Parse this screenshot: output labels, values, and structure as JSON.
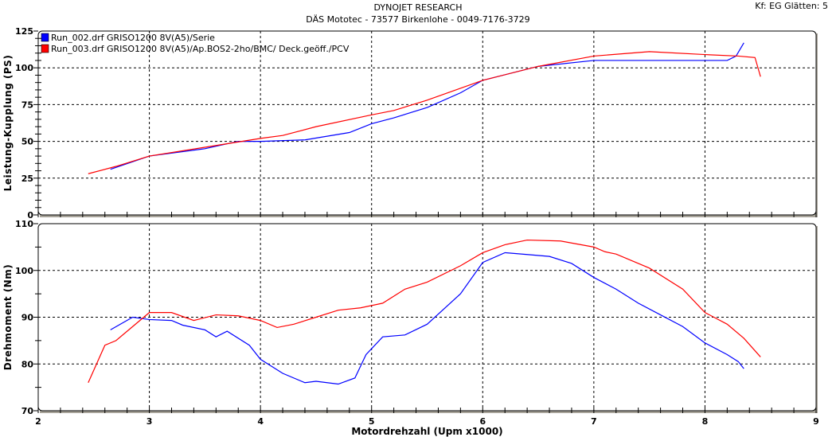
{
  "header": {
    "title": "DYNOJET RESEARCH",
    "subtitle": "DÄS Mototec - 73577 Birkenlohe  - 0049-7176-3729",
    "corner": "Kf: EG  Glätten: 5"
  },
  "colors": {
    "run1": "#0000ff",
    "run2": "#ff0000",
    "shadow": "#a8a49a"
  },
  "chart_data": [
    {
      "type": "line",
      "ylabel": "Leistung-Kupplung (PS)",
      "xlabel": "Motordrehzahl (Upm x1000)",
      "xlim": [
        2,
        9
      ],
      "ylim": [
        0,
        125
      ],
      "xticks": [
        2,
        3,
        4,
        5,
        6,
        7,
        8,
        9
      ],
      "yticks": [
        0,
        25,
        50,
        75,
        100,
        125
      ],
      "grid": true,
      "legend": "top-left",
      "series": [
        {
          "name": "Run_002.drf GRISO1200 8V(A5)/Serie",
          "color": "#0000ff",
          "points": [
            [
              2.65,
              31
            ],
            [
              3.0,
              40
            ],
            [
              3.5,
              45
            ],
            [
              3.8,
              50
            ],
            [
              4.0,
              50
            ],
            [
              4.4,
              51
            ],
            [
              4.8,
              56
            ],
            [
              5.0,
              62
            ],
            [
              5.2,
              66
            ],
            [
              5.5,
              73
            ],
            [
              5.8,
              83
            ],
            [
              6.0,
              91.5
            ],
            [
              6.5,
              101
            ],
            [
              7.0,
              105
            ],
            [
              7.5,
              105
            ],
            [
              8.0,
              105
            ],
            [
              8.2,
              105
            ],
            [
              8.28,
              108
            ],
            [
              8.35,
              117
            ]
          ]
        },
        {
          "name": "Run_003.drf GRISO1200 8V(A5)/Ap.BOS2-2ho/BMC/ Deck.geöff./PCV",
          "color": "#ff0000",
          "points": [
            [
              2.45,
              28
            ],
            [
              2.7,
              33
            ],
            [
              3.0,
              40
            ],
            [
              3.5,
              46
            ],
            [
              4.0,
              52
            ],
            [
              4.2,
              54
            ],
            [
              4.5,
              60
            ],
            [
              5.0,
              68
            ],
            [
              5.2,
              71
            ],
            [
              5.5,
              78
            ],
            [
              6.0,
              91.5
            ],
            [
              6.5,
              101
            ],
            [
              7.0,
              108
            ],
            [
              7.5,
              111
            ],
            [
              8.0,
              109
            ],
            [
              8.3,
              108
            ],
            [
              8.45,
              107
            ],
            [
              8.5,
              94
            ]
          ]
        }
      ]
    },
    {
      "type": "line",
      "ylabel": "Drehmoment (Nm)",
      "xlabel": "Motordrehzahl (Upm x1000)",
      "xlim": [
        2,
        9
      ],
      "ylim": [
        70,
        110
      ],
      "xticks": [
        2,
        3,
        4,
        5,
        6,
        7,
        8,
        9
      ],
      "yticks": [
        70,
        80,
        90,
        100,
        110
      ],
      "grid": true,
      "series": [
        {
          "name": "Run_002",
          "color": "#0000ff",
          "points": [
            [
              2.65,
              87.3
            ],
            [
              2.85,
              90
            ],
            [
              3.0,
              89.5
            ],
            [
              3.2,
              89.3
            ],
            [
              3.3,
              88.3
            ],
            [
              3.5,
              87.3
            ],
            [
              3.6,
              85.8
            ],
            [
              3.7,
              87
            ],
            [
              3.9,
              84
            ],
            [
              4.0,
              81
            ],
            [
              4.2,
              78
            ],
            [
              4.4,
              76
            ],
            [
              4.5,
              76.3
            ],
            [
              4.7,
              75.7
            ],
            [
              4.85,
              77
            ],
            [
              4.95,
              82
            ],
            [
              5.1,
              85.8
            ],
            [
              5.3,
              86.2
            ],
            [
              5.5,
              88.5
            ],
            [
              5.8,
              95
            ],
            [
              6.0,
              101.7
            ],
            [
              6.2,
              103.8
            ],
            [
              6.4,
              103.4
            ],
            [
              6.6,
              103
            ],
            [
              6.8,
              101.5
            ],
            [
              7.0,
              98.5
            ],
            [
              7.2,
              96
            ],
            [
              7.4,
              93
            ],
            [
              7.6,
              90.5
            ],
            [
              7.8,
              88
            ],
            [
              8.0,
              84.5
            ],
            [
              8.2,
              82
            ],
            [
              8.3,
              80.5
            ],
            [
              8.35,
              79
            ]
          ]
        },
        {
          "name": "Run_003",
          "color": "#ff0000",
          "points": [
            [
              2.45,
              76
            ],
            [
              2.6,
              84
            ],
            [
              2.7,
              85
            ],
            [
              2.85,
              88
            ],
            [
              3.0,
              91
            ],
            [
              3.2,
              91
            ],
            [
              3.4,
              89.3
            ],
            [
              3.6,
              90.5
            ],
            [
              3.8,
              90.3
            ],
            [
              4.0,
              89.3
            ],
            [
              4.15,
              87.8
            ],
            [
              4.3,
              88.5
            ],
            [
              4.5,
              90
            ],
            [
              4.7,
              91.5
            ],
            [
              4.9,
              92
            ],
            [
              5.1,
              93
            ],
            [
              5.3,
              96
            ],
            [
              5.5,
              97.5
            ],
            [
              5.8,
              101
            ],
            [
              6.0,
              103.8
            ],
            [
              6.2,
              105.5
            ],
            [
              6.4,
              106.5
            ],
            [
              6.7,
              106.3
            ],
            [
              7.0,
              105
            ],
            [
              7.1,
              104
            ],
            [
              7.2,
              103.5
            ],
            [
              7.5,
              100.5
            ],
            [
              7.8,
              96
            ],
            [
              8.0,
              91
            ],
            [
              8.2,
              88.5
            ],
            [
              8.35,
              85.5
            ],
            [
              8.5,
              81.5
            ]
          ]
        }
      ]
    }
  ]
}
